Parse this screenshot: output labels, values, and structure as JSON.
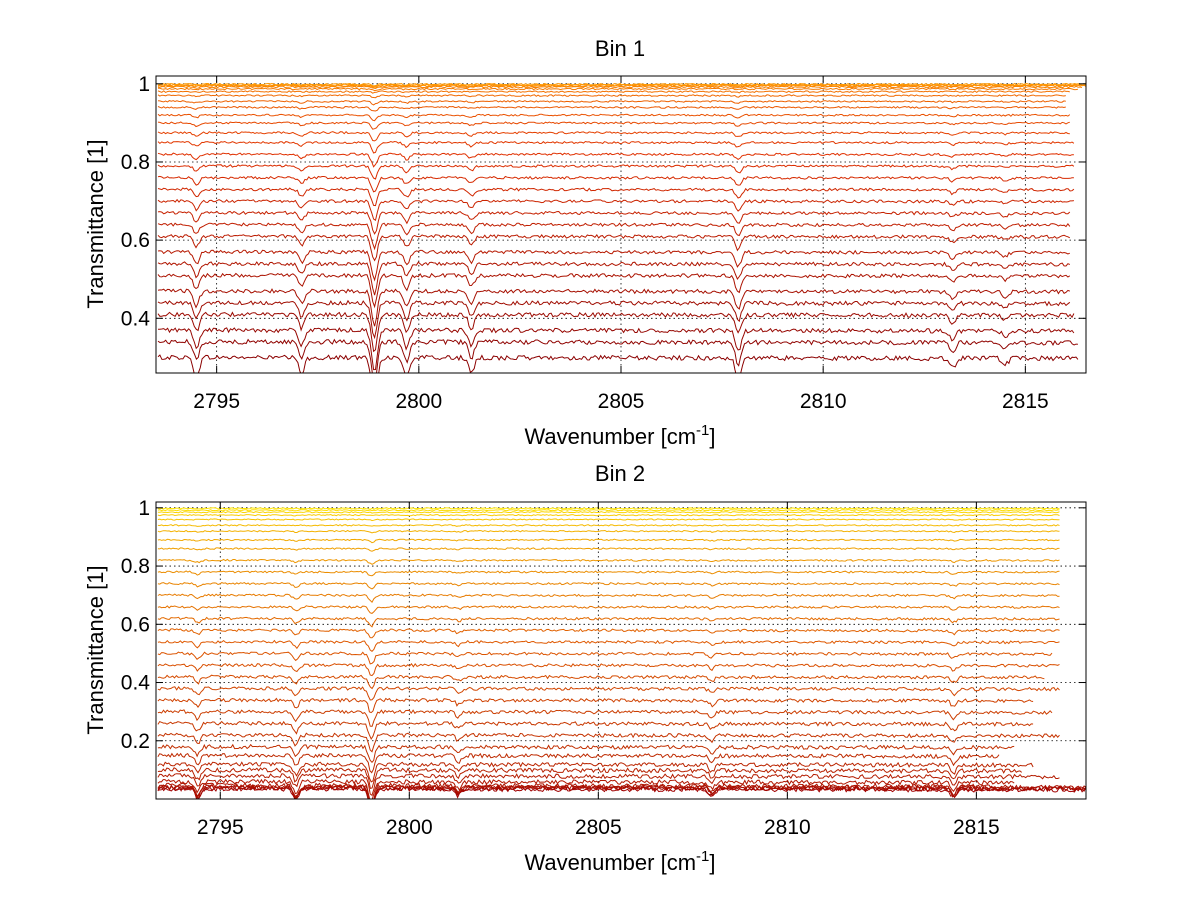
{
  "chart_data": [
    {
      "type": "line",
      "title": "Bin 1",
      "xlabel": "Wavenumber [cm",
      "xlabel_sup": "-1",
      "xlabel_suffix": "]",
      "ylabel": "Transmittance [1]",
      "xlim": [
        2793.5,
        2816.5
      ],
      "ylim": [
        0.26,
        1.02
      ],
      "xticks": [
        2795,
        2800,
        2805,
        2810,
        2815
      ],
      "xtick_labels": [
        "2795",
        "2800",
        "2805",
        "2810",
        "2815"
      ],
      "yticks": [
        0.4,
        0.6,
        0.8,
        1.0
      ],
      "ytick_labels": [
        "0.4",
        "0.6",
        "0.8",
        "1"
      ],
      "grid": true,
      "series_count": 30,
      "baselines": [
        0.3,
        0.34,
        0.37,
        0.41,
        0.44,
        0.47,
        0.51,
        0.54,
        0.57,
        0.61,
        0.64,
        0.67,
        0.7,
        0.73,
        0.76,
        0.79,
        0.82,
        0.85,
        0.875,
        0.9,
        0.92,
        0.94,
        0.955,
        0.97,
        0.98,
        0.987,
        0.992,
        0.995,
        0.997,
        0.999
      ],
      "x_end": [
        2816.3,
        2816.3,
        2816.2,
        2816.2,
        2816.1,
        2816.1,
        2816.1,
        2816.1,
        2816.1,
        2816.1,
        2816.1,
        2816.1,
        2816.2,
        2816.2,
        2816.2,
        2816.2,
        2816.2,
        2816.2,
        2816.1,
        2816.1,
        2816.1,
        2816.0,
        2816.0,
        2816.0,
        2816.1,
        2816.3,
        2816.4,
        2816.5,
        2816.5,
        2816.5
      ],
      "absorption_lines": [
        {
          "x": 2794.5,
          "depth": 0.06
        },
        {
          "x": 2797.1,
          "depth": 0.05
        },
        {
          "x": 2798.9,
          "depth": 0.14
        },
        {
          "x": 2799.7,
          "depth": 0.06
        },
        {
          "x": 2801.3,
          "depth": 0.05
        },
        {
          "x": 2807.9,
          "depth": 0.07
        },
        {
          "x": 2813.2,
          "depth": 0.03
        },
        {
          "x": 2814.5,
          "depth": 0.02
        }
      ],
      "colors": {
        "dark": "#8b0000",
        "mid": "#e03000",
        "light": "#ff9900"
      }
    },
    {
      "type": "line",
      "title": "Bin 2",
      "xlabel": "Wavenumber [cm",
      "xlabel_sup": "-1",
      "xlabel_suffix": "]",
      "ylabel": "Transmittance [1]",
      "xlim": [
        2793.3,
        2817.9
      ],
      "ylim": [
        0.0,
        1.02
      ],
      "xticks": [
        2795,
        2800,
        2805,
        2810,
        2815
      ],
      "xtick_labels": [
        "2795",
        "2800",
        "2805",
        "2810",
        "2815"
      ],
      "yticks": [
        0.2,
        0.4,
        0.6,
        0.8,
        1.0
      ],
      "ytick_labels": [
        "0.2",
        "0.4",
        "0.6",
        "0.8",
        "1"
      ],
      "grid": true,
      "series_count": 36,
      "baselines": [
        0.035,
        0.038,
        0.04,
        0.043,
        0.047,
        0.06,
        0.08,
        0.1,
        0.12,
        0.15,
        0.18,
        0.22,
        0.26,
        0.3,
        0.34,
        0.38,
        0.42,
        0.46,
        0.5,
        0.54,
        0.58,
        0.62,
        0.66,
        0.7,
        0.74,
        0.78,
        0.82,
        0.86,
        0.89,
        0.92,
        0.94,
        0.96,
        0.975,
        0.985,
        0.992,
        0.998
      ],
      "x_end": [
        2817.9,
        2817.9,
        2817.9,
        2817.9,
        2815.9,
        2816.0,
        2817.2,
        2816.2,
        2816.5,
        2815.6,
        2816.0,
        2817.2,
        2816.5,
        2817.0,
        2816.5,
        2817.2,
        2816.8,
        2817.2,
        2817.0,
        2817.2,
        2817.2,
        2817.2,
        2817.2,
        2817.2,
        2817.2,
        2817.2,
        2817.2,
        2817.2,
        2817.2,
        2817.2,
        2817.2,
        2817.2,
        2817.2,
        2817.2,
        2817.2,
        2817.2
      ],
      "absorption_lines": [
        {
          "x": 2794.4,
          "depth": 0.03
        },
        {
          "x": 2797.0,
          "depth": 0.035
        },
        {
          "x": 2799.0,
          "depth": 0.06
        },
        {
          "x": 2801.3,
          "depth": 0.02
        },
        {
          "x": 2808.0,
          "depth": 0.02
        },
        {
          "x": 2814.4,
          "depth": 0.025
        }
      ],
      "colors": {
        "dark": "#a00000",
        "mid": "#e05a00",
        "light": "#ffe600"
      }
    }
  ]
}
